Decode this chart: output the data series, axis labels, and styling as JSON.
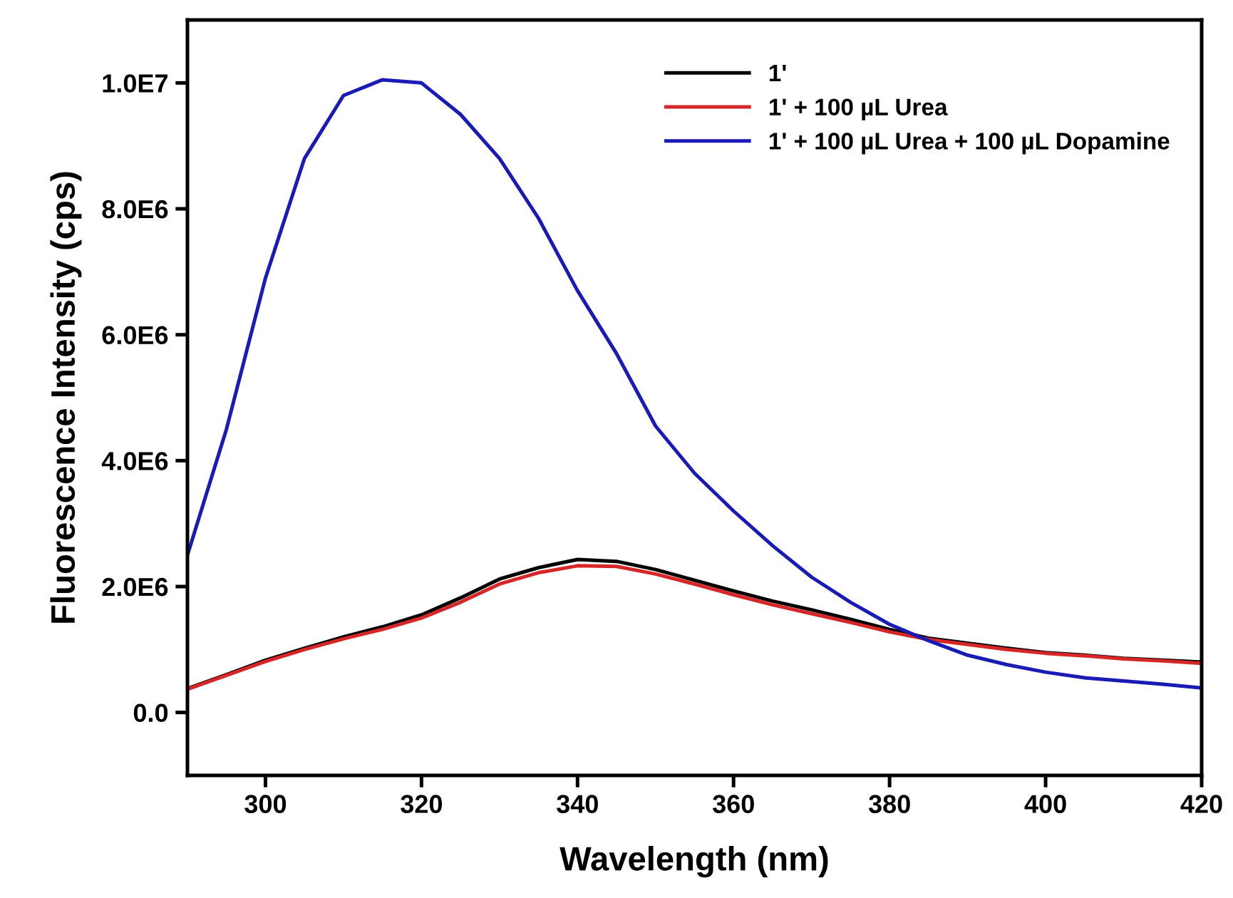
{
  "chart_data": {
    "type": "line",
    "xlabel": "Wavelength (nm)",
    "ylabel": "Fluorescence Intensity (cps)",
    "x": [
      290,
      295,
      300,
      305,
      310,
      315,
      320,
      325,
      330,
      335,
      340,
      345,
      350,
      355,
      360,
      365,
      370,
      375,
      380,
      385,
      390,
      395,
      400,
      405,
      410,
      415,
      420
    ],
    "xlim": [
      290,
      420
    ],
    "xticks": [
      300,
      320,
      340,
      360,
      380,
      400,
      420
    ],
    "ylim": [
      -1000000,
      11000000
    ],
    "yticks": [
      {
        "value": 0,
        "label": "0.0"
      },
      {
        "value": 2000000,
        "label": "2.0E6"
      },
      {
        "value": 4000000,
        "label": "4.0E6"
      },
      {
        "value": 6000000,
        "label": "6.0E6"
      },
      {
        "value": 8000000,
        "label": "8.0E6"
      },
      {
        "value": 10000000,
        "label": "1.0E7"
      }
    ],
    "grid": false,
    "legend": "top right",
    "line_style": "solid",
    "series": [
      {
        "name": "1'",
        "color": "#000000",
        "values": [
          380000,
          600000,
          830000,
          1020000,
          1200000,
          1360000,
          1550000,
          1820000,
          2120000,
          2300000,
          2430000,
          2400000,
          2270000,
          2100000,
          1930000,
          1770000,
          1630000,
          1480000,
          1320000,
          1180000,
          1100000,
          1020000,
          950000,
          910000,
          860000,
          830000,
          800000
        ]
      },
      {
        "name": "1' + 100 µL Urea",
        "color": "#d62728",
        "values": [
          370000,
          590000,
          810000,
          1000000,
          1170000,
          1320000,
          1500000,
          1750000,
          2040000,
          2220000,
          2330000,
          2320000,
          2200000,
          2040000,
          1870000,
          1710000,
          1570000,
          1430000,
          1280000,
          1160000,
          1080000,
          1000000,
          940000,
          900000,
          850000,
          820000,
          780000
        ]
      },
      {
        "name": "1' + 100 µL Urea + 100 µL Dopamine",
        "color": "#1a1ab4",
        "values": [
          2500000,
          4500000,
          6900000,
          8800000,
          9800000,
          10050000,
          10000000,
          9500000,
          8800000,
          7850000,
          6700000,
          5700000,
          4550000,
          3800000,
          3200000,
          2650000,
          2150000,
          1750000,
          1400000,
          1140000,
          910000,
          760000,
          640000,
          550000,
          500000,
          450000,
          390000
        ]
      }
    ]
  }
}
